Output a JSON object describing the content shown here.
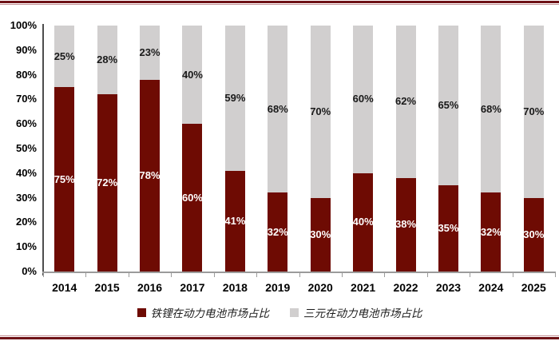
{
  "chart_data": {
    "type": "bar",
    "stacked": true,
    "orientation": "vertical",
    "categories": [
      "2014",
      "2015",
      "2016",
      "2017",
      "2018",
      "2019",
      "2020",
      "2021",
      "2022",
      "2023",
      "2024",
      "2025"
    ],
    "series": [
      {
        "name": "铁锂在动力电池市场占比",
        "color": "#6e0b03",
        "values": [
          75,
          72,
          78,
          60,
          41,
          32,
          30,
          40,
          38,
          35,
          32,
          30
        ],
        "labels": [
          "75%",
          "72%",
          "78%",
          "60%",
          "41%",
          "32%",
          "30%",
          "40%",
          "38%",
          "35%",
          "32%",
          "30%"
        ],
        "label_color": "#ffffff"
      },
      {
        "name": "三元在动力电池市场占比",
        "color": "#d1cfcf",
        "values": [
          25,
          28,
          23,
          40,
          59,
          68,
          70,
          60,
          62,
          65,
          68,
          70
        ],
        "labels": [
          "25%",
          "28%",
          "23%",
          "40%",
          "59%",
          "68%",
          "70%",
          "60%",
          "62%",
          "65%",
          "68%",
          "70%"
        ],
        "label_color": "#1a1a1a"
      }
    ],
    "title": "",
    "xlabel": "",
    "ylabel": "",
    "ylim": [
      0,
      100
    ],
    "y_ticks": [
      "0%",
      "10%",
      "20%",
      "30%",
      "40%",
      "50%",
      "60%",
      "70%",
      "80%",
      "90%",
      "100%"
    ],
    "grid": false,
    "legend_position": "bottom",
    "data_labels": "inside-center"
  },
  "legend": {
    "items": [
      {
        "label": "铁锂在动力电池市场占比",
        "color": "#6e0b03"
      },
      {
        "label": "三元在动力电池市场占比",
        "color": "#d1cfcf"
      }
    ]
  },
  "colors": {
    "bar_lfp": "#6e0b03",
    "bar_ternary": "#d1cfcf",
    "rule_dark": "#6e1216",
    "rule_light": "#c49296",
    "y_axis_line": "#4d4d4d",
    "x_axis_line": "#9b9b9b",
    "tick_text": "#000000",
    "background": "#ffffff"
  }
}
